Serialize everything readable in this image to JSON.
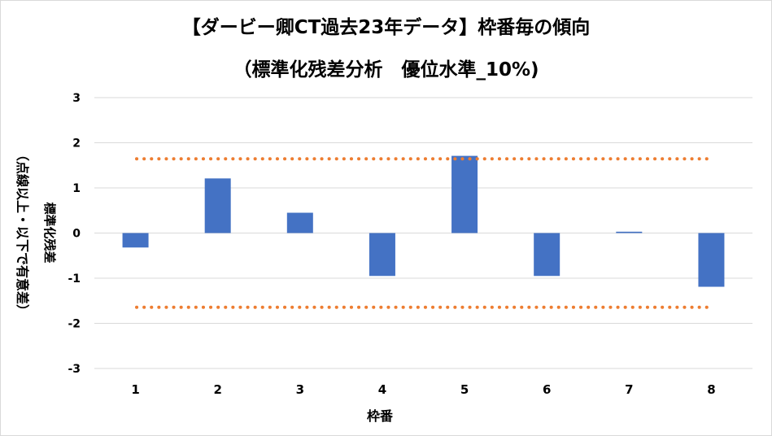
{
  "chart_data": {
    "type": "bar",
    "title_line1": "【ダービー卿CT過去23年データ】枠番毎の傾向",
    "title_line2": "（標準化残差分析　優位水準_10%)",
    "xlabel": "枠番",
    "ylabel_line1": "標準化残差",
    "ylabel_line2": "（点線以上・以下で有意差）",
    "categories": [
      "1",
      "2",
      "3",
      "4",
      "5",
      "6",
      "7",
      "8"
    ],
    "values": [
      -0.32,
      1.21,
      0.45,
      -0.95,
      1.71,
      -0.95,
      0.03,
      -1.19
    ],
    "ylim": [
      -3,
      3
    ],
    "yticks": [
      "3",
      "2",
      "1",
      "0",
      "-1",
      "-2",
      "-3"
    ],
    "ytick_values": [
      3,
      2,
      1,
      0,
      -1,
      -2,
      -3
    ],
    "thresholds": [
      1.645,
      -1.645
    ],
    "bar_color": "#4472c4",
    "threshold_color": "#ed7d31",
    "grid_color": "#d9d9d9",
    "grid": true,
    "legend": "none"
  }
}
